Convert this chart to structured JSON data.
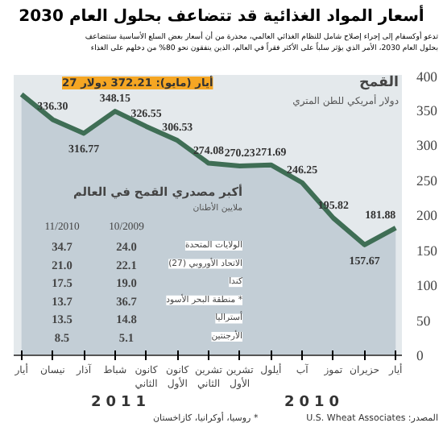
{
  "chart_data": [
    {
      "type": "area",
      "title": "أسعار المواد الغذائية قد تتضاعف بحلول العام 2030",
      "subtitle": "تدعو أوكسفام إلى إجراء إصلاح شامل للنظام الغذائي العالمي، محذرة من أن أسعار بعض السلع الأساسية ستتضاعف\nبحلول العام 2030، الأمر الذي يؤثر سلباً على الأكثر فقراً في العالم، الذين ينفقون نحو 80% من دخلهم على الغذاء",
      "ylabel": "دولار أمريكي للطن المتري",
      "categories": [
        "أيار",
        "نيسان",
        "آذار",
        "شباط",
        "كانون\nالثاني",
        "كانون\nالأول",
        "تشرين\nالثاني",
        "تشرين\nالأول",
        "أيلول",
        "آب",
        "تموز",
        "حزيران",
        "أيار"
      ],
      "series": [
        {
          "name": "القمح",
          "color": "#3f6e55",
          "values": [
            372.21,
            336.3,
            316.77,
            348.15,
            326.55,
            306.53,
            274.08,
            270.23,
            271.69,
            246.25,
            195.82,
            157.67,
            181.88
          ],
          "value_labels": [
            null,
            "336.30",
            "316.77",
            "348.15",
            "326.55",
            "306.53",
            "274.08",
            "270.23",
            "271.69",
            "246.25",
            "195.82",
            "157.67",
            "181.88"
          ]
        }
      ],
      "ylim": [
        0,
        400
      ],
      "yticks": [
        0,
        50,
        100,
        150,
        200,
        250,
        300,
        350,
        400
      ],
      "annotations": [
        "27 أيار (مايو): 372.21 دولار",
        "2011",
        "2010",
        "المصدر: U.S. Wheat Associates"
      ]
    },
    {
      "type": "other",
      "title": "أكبر مصدري القمح في العالم",
      "subtitle": "ملايين الأطنان",
      "categories": [
        "الولايات المتحدة",
        "الاتحاد الأوروبي (27)",
        "كندا",
        "منطقة البحر الأسود *",
        "أستراليا",
        "الأرجنتين"
      ],
      "series": [
        {
          "name": "11/2010",
          "values": [
            34.7,
            21.0,
            17.5,
            13.7,
            13.5,
            8.5
          ],
          "value_labels": [
            "34.7",
            "21.0",
            "17.5",
            "13.7",
            "13.5",
            "8.5"
          ]
        },
        {
          "name": "10/2009",
          "values": [
            24.0,
            22.1,
            19.0,
            36.7,
            14.8,
            5.1
          ],
          "value_labels": [
            "24.0",
            "22.1",
            "19.0",
            "36.7",
            "14.8",
            "5.1"
          ]
        }
      ],
      "annotations": [
        "* روسيا، أوكرانيا، كازاخستان"
      ]
    }
  ]
}
